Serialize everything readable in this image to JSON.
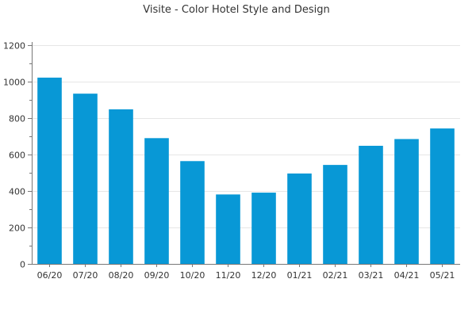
{
  "chart_data": {
    "type": "bar",
    "title": "Visite - Color Hotel Style and Design",
    "xlabel": "",
    "ylabel": "",
    "categories": [
      "06/20",
      "07/20",
      "08/20",
      "09/20",
      "10/20",
      "11/20",
      "12/20",
      "01/21",
      "02/21",
      "03/21",
      "04/21",
      "05/21"
    ],
    "values": [
      1022,
      934,
      848,
      690,
      564,
      381,
      391,
      496,
      543,
      648,
      685,
      743
    ],
    "ylim": [
      0,
      1200
    ],
    "yticks": [
      0,
      200,
      400,
      600,
      800,
      1000,
      1200
    ],
    "grid": true,
    "legend": "none",
    "bar_color": "#0898d6"
  }
}
